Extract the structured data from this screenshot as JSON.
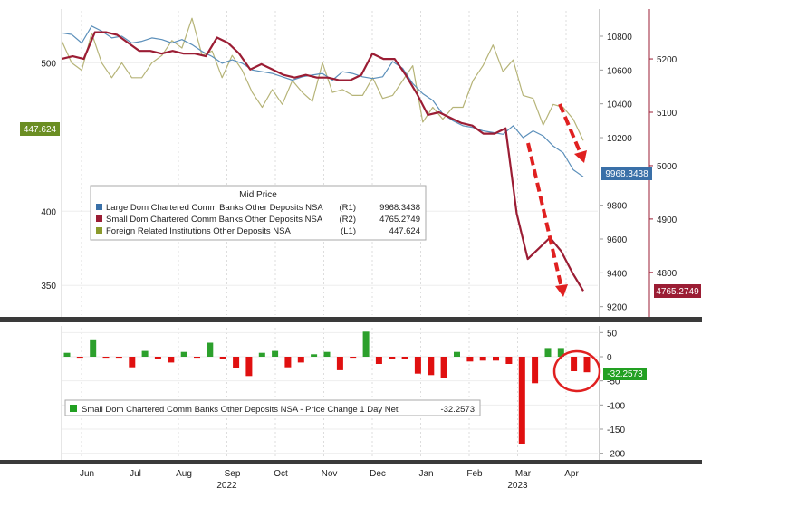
{
  "chart_data": [
    {
      "type": "line",
      "legend": {
        "title": "Mid Price",
        "placement": "center-left",
        "entries": [
          {
            "name": "Large Dom Chartered Comm Banks Other Deposits NSA",
            "axis": "(R1)",
            "value": "9968.3438"
          },
          {
            "name": "Small Dom Chartered Comm Banks Other Deposits NSA",
            "axis": "(R2)",
            "value": "4765.2749"
          },
          {
            "name": "Foreign Related Institutions Other Deposits NSA",
            "axis": "(L1)",
            "value": "447.624"
          }
        ]
      },
      "axes": {
        "left": {
          "ticks": [
            "500",
            "400",
            "350"
          ],
          "range": [
            330,
            535
          ]
        },
        "right1": {
          "ticks": [
            "10800",
            "10600",
            "10400",
            "10200",
            "9800",
            "9600",
            "9400",
            "9200"
          ],
          "range": [
            9150,
            10950
          ]
        },
        "right2": {
          "ticks": [
            "5200",
            "5100",
            "5000",
            "4900",
            "4800"
          ],
          "range": [
            4720,
            5290
          ]
        }
      },
      "last_value_labels": {
        "left": "447.624",
        "right1": "9968.3438",
        "right2": "4765.2749"
      },
      "colors": {
        "large": "#5b8fba",
        "small": "#9b1d34",
        "foreign": "#b6b478",
        "arrow": "#e02020"
      },
      "series": [
        {
          "name": "Large Dom Chartered Comm Banks Other Deposits NSA",
          "axis": "right1",
          "values": [
            10820,
            10810,
            10760,
            10860,
            10830,
            10790,
            10800,
            10760,
            10770,
            10790,
            10780,
            10760,
            10780,
            10750,
            10710,
            10680,
            10640,
            10660,
            10640,
            10600,
            10590,
            10580,
            10560,
            10540,
            10560,
            10570,
            10580,
            10540,
            10590,
            10580,
            10560,
            10550,
            10560,
            10650,
            10610,
            10520,
            10460,
            10420,
            10340,
            10300,
            10270,
            10260,
            10240,
            10230,
            10220,
            10270,
            10200,
            10240,
            10210,
            10150,
            10110,
            10010,
            9968.3438
          ]
        },
        {
          "name": "Small Dom Chartered Comm Banks Other Deposits NSA",
          "axis": "right2",
          "values": [
            5200,
            5205,
            5200,
            5250,
            5250,
            5245,
            5230,
            5215,
            5215,
            5210,
            5215,
            5210,
            5210,
            5205,
            5240,
            5230,
            5210,
            5180,
            5190,
            5180,
            5170,
            5165,
            5170,
            5165,
            5165,
            5160,
            5160,
            5170,
            5210,
            5200,
            5200,
            5170,
            5135,
            5095,
            5100,
            5090,
            5080,
            5075,
            5060,
            5060,
            5070,
            4910,
            4825,
            4845,
            4865,
            4840,
            4800,
            4765.2749
          ]
        },
        {
          "name": "Foreign Related Institutions Other Deposits NSA",
          "axis": "left",
          "values": [
            515,
            500,
            495,
            520,
            500,
            490,
            500,
            490,
            490,
            500,
            505,
            515,
            510,
            530,
            505,
            508,
            490,
            505,
            495,
            480,
            470,
            482,
            472,
            488,
            480,
            474,
            500,
            480,
            482,
            478,
            478,
            490,
            476,
            478,
            488,
            498,
            460,
            470,
            462,
            470,
            470,
            488,
            498,
            512,
            494,
            502,
            478,
            476,
            458,
            472,
            470,
            462,
            447.624
          ]
        }
      ],
      "arrows": [
        {
          "from": [
            10200,
            4950
          ],
          "to": [
            10200,
            4780
          ],
          "axis": "right1-x-index",
          "note": ""
        }
      ]
    },
    {
      "type": "bar",
      "axis": {
        "ticks": [
          "50",
          "0",
          "-50",
          "-100",
          "-150",
          "-200"
        ],
        "range": [
          -210,
          60
        ]
      },
      "last_value_label": "-32.2573",
      "legend": {
        "placement": "bottom-left",
        "entries": [
          {
            "name": "Small Dom Chartered Comm Banks Other Deposits NSA - Price Change 1 Day Net",
            "value": "-32.2573"
          }
        ]
      },
      "colors": {
        "positive": "#2ca02c",
        "negative": "#e01010"
      },
      "values": [
        8,
        -2,
        36,
        -2,
        -2,
        -22,
        12,
        -5,
        -12,
        10,
        -2,
        29,
        -4,
        -24,
        -40,
        8,
        12,
        -22,
        -12,
        5,
        10,
        -28,
        -2,
        52,
        -15,
        -5,
        -5,
        -35,
        -38,
        -45,
        10,
        -10,
        -8,
        -8,
        -15,
        -180,
        -55,
        18,
        18,
        -30,
        -32.2573
      ]
    }
  ],
  "x_axis": {
    "months": [
      "Jun",
      "Jul",
      "Aug",
      "Sep",
      "Oct",
      "Nov",
      "Dec",
      "Jan",
      "Feb",
      "Mar",
      "Apr"
    ],
    "years": [
      "2022",
      "2023"
    ]
  }
}
